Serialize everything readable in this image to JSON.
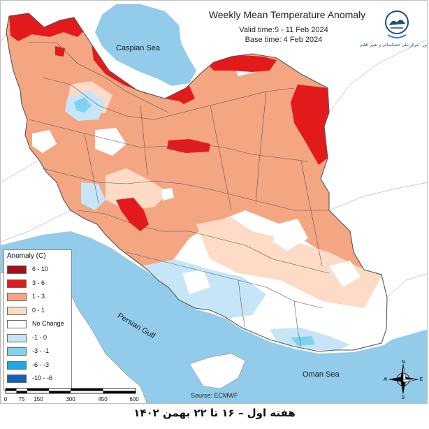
{
  "title": "Weekly Mean Temperature Anomaly",
  "valid_time": "Valid time:5 - 11 Feb 2024",
  "base_time": "Base time: 4 Feb 2024",
  "logo_text": "سازمان هواشناسی کشور - مرکز ملی خشکسالی و تغییر اقلیم",
  "labels": {
    "caspian": "Caspian Sea",
    "persian_gulf": "Persian Gulf",
    "oman": "Oman Sea"
  },
  "legend": {
    "title": "Anomaly (C)",
    "items": [
      {
        "label": "6 - 10",
        "color": "#a50f15"
      },
      {
        "label": "3 - 6",
        "color": "#e31a1c"
      },
      {
        "label": "1 - 3",
        "color": "#f4a582"
      },
      {
        "label": "0 - 1",
        "color": "#fddbc7"
      },
      {
        "label": "No Change",
        "color": "#ffffff"
      },
      {
        "label": "-1 - 0",
        "color": "#c6e6f7"
      },
      {
        "label": "-3 - -1",
        "color": "#7fd2f0"
      },
      {
        "label": "-6 - -3",
        "color": "#1ca8e8"
      },
      {
        "label": "-10 - -6",
        "color": "#1a5db5"
      }
    ]
  },
  "scale_ticks": [
    "0",
    "75",
    "150",
    "300",
    "450",
    "600"
  ],
  "compass": {
    "n": "N",
    "s": "S",
    "e": "E",
    "w": "W"
  },
  "source": "Source: ECMWF",
  "caption": "هفته اول – ۱۶ تا ۲۲ بهمن ۱۴۰۲",
  "colors": {
    "sea": "#92ccea",
    "land_out": "#ffffff",
    "border": "#555555"
  }
}
